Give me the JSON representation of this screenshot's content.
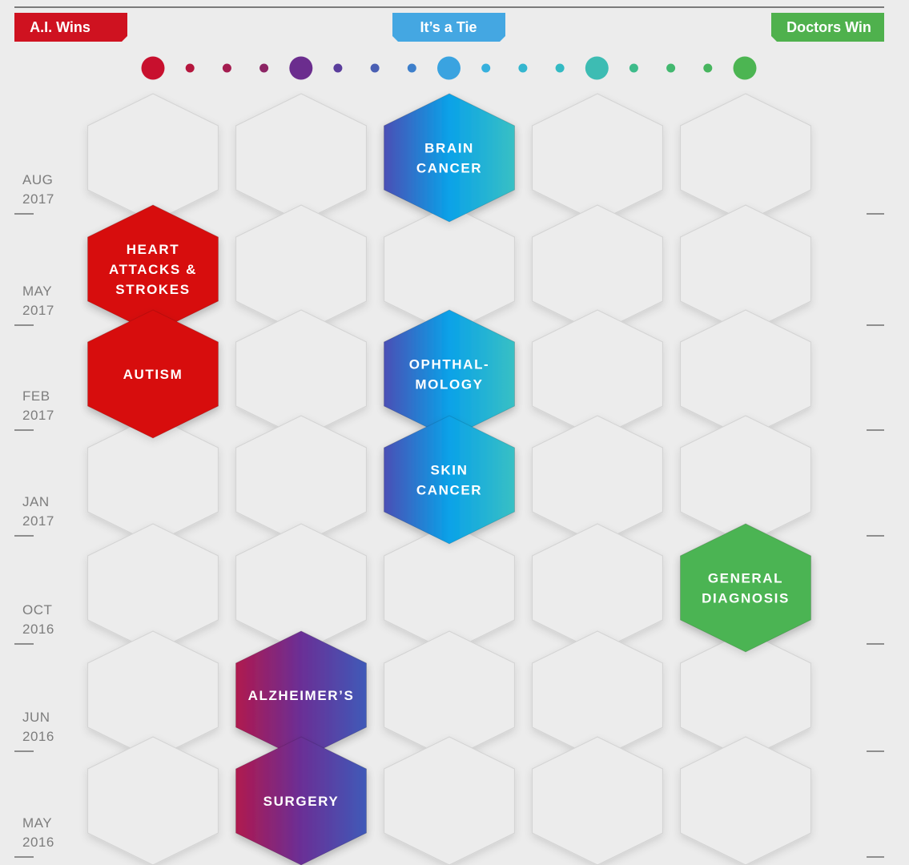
{
  "header": {
    "left": {
      "label": "A.I. Wins",
      "color": "#cf1220"
    },
    "center": {
      "label": "It’s a Tie",
      "color": "#44a7e2"
    },
    "right": {
      "label": "Doctors Win",
      "color": "#4fb14d"
    }
  },
  "scale_dots": [
    {
      "size": "large",
      "color": "#c8102e"
    },
    {
      "size": "small",
      "color": "#b5163d"
    },
    {
      "size": "small",
      "color": "#a41c4f"
    },
    {
      "size": "small",
      "color": "#8c2464"
    },
    {
      "size": "large",
      "color": "#6b2d8e"
    },
    {
      "size": "small",
      "color": "#5a3d9c"
    },
    {
      "size": "small",
      "color": "#4a5fb3"
    },
    {
      "size": "small",
      "color": "#3d7fcb"
    },
    {
      "size": "large",
      "color": "#3aa3e0"
    },
    {
      "size": "small",
      "color": "#36b0dd"
    },
    {
      "size": "small",
      "color": "#34b6cf"
    },
    {
      "size": "small",
      "color": "#33bac3"
    },
    {
      "size": "large",
      "color": "#3dbcb3"
    },
    {
      "size": "small",
      "color": "#3dbb8a"
    },
    {
      "size": "small",
      "color": "#42b86f"
    },
    {
      "size": "small",
      "color": "#47b55e"
    },
    {
      "size": "large",
      "color": "#4cb552"
    }
  ],
  "rows": [
    {
      "month": "AUG",
      "year": "2017"
    },
    {
      "month": "MAY",
      "year": "2017"
    },
    {
      "month": "FEB",
      "year": "2017"
    },
    {
      "month": "JAN",
      "year": "2017"
    },
    {
      "month": "OCT",
      "year": "2016"
    },
    {
      "month": "JUN",
      "year": "2016"
    },
    {
      "month": "MAY",
      "year": "2016"
    }
  ],
  "columns": 5,
  "studies": [
    {
      "row": 0,
      "col": 2,
      "lines": [
        "BRAIN",
        "CANCER"
      ],
      "fill": "tie"
    },
    {
      "row": 1,
      "col": 0,
      "lines": [
        "HEART",
        "ATTACKS &",
        "STROKES"
      ],
      "fill": "ai"
    },
    {
      "row": 2,
      "col": 0,
      "lines": [
        "AUTISM"
      ],
      "fill": "ai"
    },
    {
      "row": 2,
      "col": 2,
      "lines": [
        "OPHTHAL-",
        "MOLOGY"
      ],
      "fill": "tie"
    },
    {
      "row": 3,
      "col": 2,
      "lines": [
        "SKIN",
        "CANCER"
      ],
      "fill": "tie"
    },
    {
      "row": 4,
      "col": 4,
      "lines": [
        "GENERAL",
        "DIAGNOSIS"
      ],
      "fill": "doctors"
    },
    {
      "row": 5,
      "col": 1,
      "lines": [
        "ALZHEIMER’S"
      ],
      "fill": "leanai"
    },
    {
      "row": 6,
      "col": 1,
      "lines": [
        "SURGERY"
      ],
      "fill": "leanai"
    }
  ],
  "fills": {
    "ai": {
      "solid": "#d7110f"
    },
    "tie": {
      "from": "#4a4fb5",
      "mid": "#0aa2e8",
      "to": "#38c0c4"
    },
    "leanai": {
      "from": "#b0194e",
      "mid": "#6a2f96",
      "to": "#3f5ab8"
    },
    "doctors": {
      "solid": "#4cb452"
    }
  }
}
